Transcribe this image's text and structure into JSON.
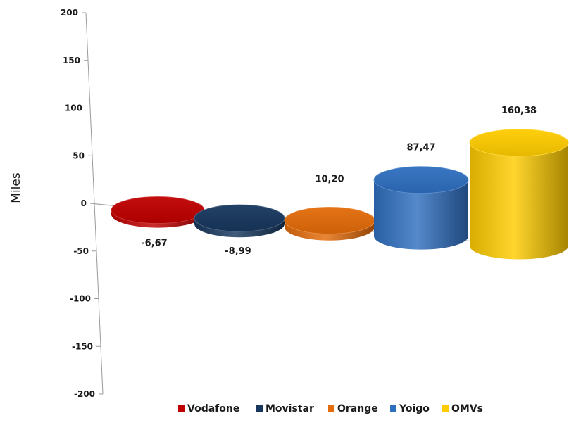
{
  "chart_data": {
    "type": "bar",
    "title": "",
    "xlabel": "",
    "ylabel": "Miles",
    "ylim": [
      -200,
      200
    ],
    "yticks": [
      200,
      150,
      100,
      50,
      0,
      -50,
      -100,
      -150,
      -200
    ],
    "ytick_labels": [
      "200",
      "150",
      "100",
      "50",
      "0",
      "-50",
      "-100",
      "-150",
      "-200"
    ],
    "grid": false,
    "legend_position": "bottom",
    "series": [
      {
        "name": "Vodafone",
        "value": -6.67,
        "label": "-6,67",
        "color": "#c00000"
      },
      {
        "name": "Movistar",
        "value": -8.99,
        "label": "-8,99",
        "color": "#17375e"
      },
      {
        "name": "Orange",
        "value": 10.2,
        "label": "10,20",
        "color": "#e46c0a"
      },
      {
        "name": "Yoigo",
        "value": 87.47,
        "label": "87,47",
        "color": "#2f6fc0"
      },
      {
        "name": "OMVs",
        "value": 160.38,
        "label": "160,38",
        "color": "#ffcc00"
      }
    ]
  }
}
